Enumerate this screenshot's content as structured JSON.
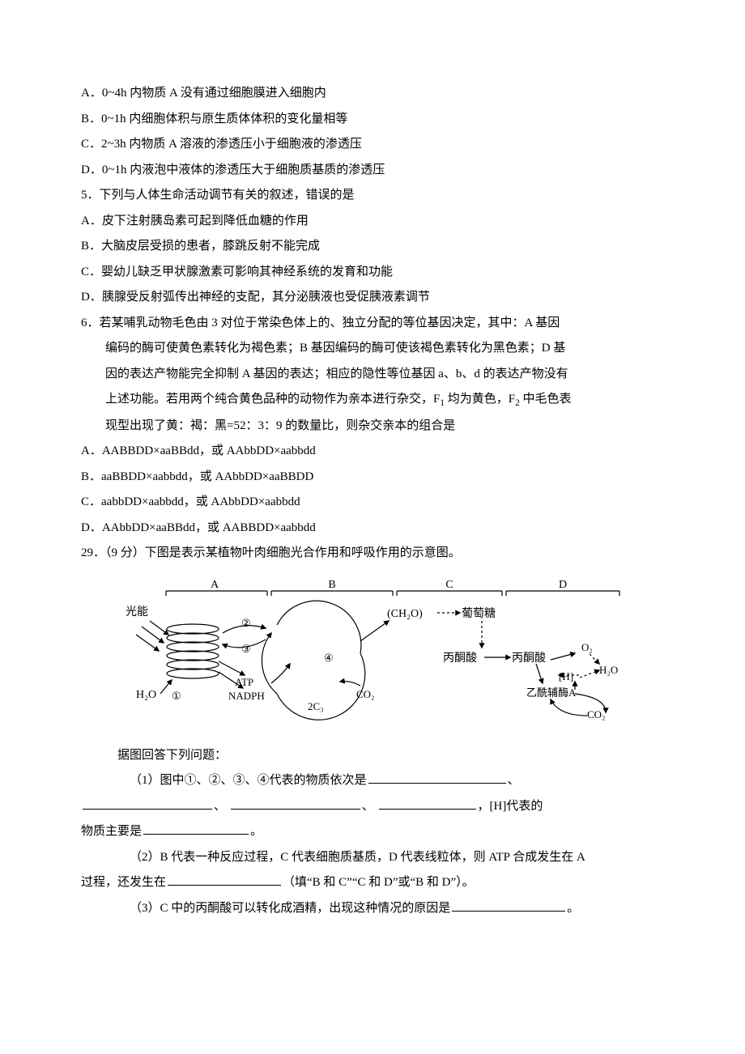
{
  "q4": {
    "A": "A．0~4h 内物质 A 没有通过细胞膜进入细胞内",
    "B": "B．0~1h 内细胞体积与原生质体体积的变化量相等",
    "C": "C．2~3h 内物质 A 溶液的渗透压小于细胞液的渗透压",
    "D": "D．0~1h 内液泡中液体的渗透压大于细胞质基质的渗透压"
  },
  "q5": {
    "stem": "5．下列与人体生命活动调节有关的叙述，错误的是",
    "A": "A．皮下注射胰岛素可起到降低血糖的作用",
    "B": "B．大脑皮层受损的患者，膝跳反射不能完成",
    "C": "C．婴幼儿缺乏甲状腺激素可影响其神经系统的发育和功能",
    "D": "D．胰腺受反射弧传出神经的支配，其分泌胰液也受促胰液素调节"
  },
  "q6": {
    "stem1": "6．若某哺乳动物毛色由 3 对位于常染色体上的、独立分配的等位基因决定，其中：A 基因",
    "stem2": "编码的酶可使黄色素转化为褐色素；B 基因编码的酶可使该褐色素转化为黑色素；D 基",
    "stem3": "因的表达产物能完全抑制 A 基因的表达；相应的隐性等位基因 a、b、d 的表达产物没有",
    "stem4_a": "上述功能。若用两个纯合黄色品种的动物作为亲本进行杂交，F",
    "stem4_b": " 均为黄色，F",
    "stem4_c": " 中毛色表",
    "stem5": "现型出现了黄：褐：黑=52：3：9 的数量比，则杂交亲本的组合是",
    "A": "A．AABBDD×aaBBdd，或 AAbbDD×aabbdd",
    "B": "B．aaBBDD×aabbdd，或 AAbbDD×aaBBDD",
    "C": "C．aabbDD×aabbdd，或 AAbbDD×aabbdd",
    "D": "D．AAbbDD×aaBBdd，或 AABBDD×aabbdd"
  },
  "q29": {
    "stem": "29．（9 分）下图是表示某植物叶肉细胞光合作用和呼吸作用的示意图。",
    "post": "据图回答下列问题：",
    "p1a": "（1）图中①、②、③、④代表的物质依次是",
    "p1b": "、",
    "p1c": "、",
    "p1d": "、",
    "p1e": "、",
    "p1f": "，[H]代表的",
    "p1g": "物质主要是",
    "p1h": "。",
    "p2a": "（2）B 代表一种反应过程，C 代表细胞质基质，D 代表线粒体，则 ATP 合成发生在 A",
    "p2b": "过程，还发生在",
    "p2c": "（填“B 和 C”“C 和 D”或“B 和 D”）。",
    "p3a": "（3）C 中的丙酮酸可以转化成酒精，出现这种情况的原因是",
    "p3b": "。"
  },
  "diagram": {
    "labels": {
      "A": "A",
      "B": "B",
      "C": "C",
      "D": "D",
      "light": "光能",
      "h2o_l": "H₂O",
      "atp": "ATP",
      "nadph": "NADPH",
      "circ1": "①",
      "circ2": "②",
      "circ3": "③",
      "circ4": "④",
      "twoC3": "2C₃",
      "co2_b": "CO₂",
      "ch2o": "(CH₂O)",
      "glucose": "葡萄糖",
      "pyruvate_c": "丙酮酸",
      "pyruvate_d": "丙酮酸",
      "o2": "O₂",
      "h2o_r": "H₂O",
      "h_brkt": "[H]",
      "acetyl": "乙酰辅酶A",
      "co2_d": "CO₂"
    },
    "colors": {
      "stroke": "#000000",
      "text": "#000000",
      "bg": "#ffffff"
    },
    "font_main": 14,
    "font_small": 12
  },
  "blanks": {
    "w_long": 170,
    "w_mid": 150,
    "w_mid2": 160,
    "w_short": 120,
    "w_short2": 130,
    "w_tiny": 140
  }
}
